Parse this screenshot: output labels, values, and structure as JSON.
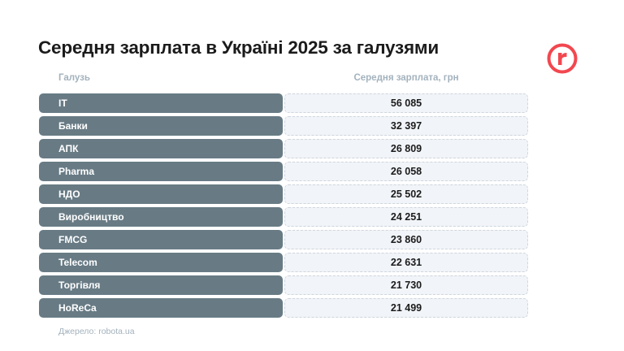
{
  "title": "Середня зарплата в Україні 2025 за галузями",
  "brand": {
    "logo_letter": "r",
    "color": "#f2474f"
  },
  "chart_data": {
    "type": "table",
    "columns": [
      "Галузь",
      "Середня зарплата, грн"
    ],
    "rows": [
      {
        "category": "IT",
        "value": "56 085"
      },
      {
        "category": "Банки",
        "value": "32 397"
      },
      {
        "category": "АПК",
        "value": "26 809"
      },
      {
        "category": "Pharma",
        "value": "26 058"
      },
      {
        "category": "НДО",
        "value": "25 502"
      },
      {
        "category": "Виробництво",
        "value": "24 251"
      },
      {
        "category": "FMCG",
        "value": "23 860"
      },
      {
        "category": "Telecom",
        "value": "22 631"
      },
      {
        "category": "Торгівля",
        "value": "21 730"
      },
      {
        "category": "HoReCa",
        "value": "21 499"
      }
    ]
  },
  "source": "Джерело: robota.ua"
}
